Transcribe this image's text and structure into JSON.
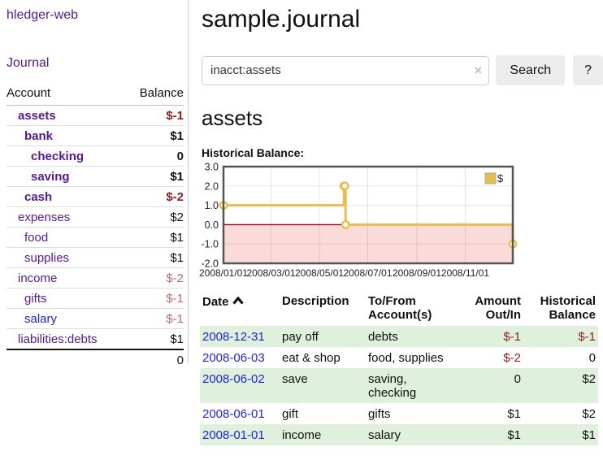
{
  "colors": {
    "purple": "#551a8b",
    "blue": "#2323cd",
    "neg": "#8c1f1f",
    "negmuted": "#c06a6a",
    "green": "#dff0dc",
    "divider": "#cccccc"
  },
  "sidebar": {
    "app_title": "hledger-web",
    "journal_link": "Journal",
    "table": {
      "account_header": "Account",
      "balance_header": "Balance",
      "accounts": [
        {
          "name": "assets",
          "depth": 1,
          "bold": true,
          "balance": "$-1",
          "balance_style": "negative"
        },
        {
          "name": "bank",
          "depth": 2,
          "bold": true,
          "balance": "$1",
          "balance_style": "normal"
        },
        {
          "name": "checking",
          "depth": 3,
          "bold": true,
          "balance": "0",
          "balance_style": "normal"
        },
        {
          "name": "saving",
          "depth": 3,
          "bold": true,
          "balance": "$1",
          "balance_style": "normal"
        },
        {
          "name": "cash",
          "depth": 2,
          "bold": true,
          "balance": "$-2",
          "balance_style": "negative"
        },
        {
          "name": "expenses",
          "depth": 1,
          "bold": false,
          "balance": "$2",
          "balance_style": "normal"
        },
        {
          "name": "food",
          "depth": 2,
          "bold": false,
          "balance": "$1",
          "balance_style": "normal"
        },
        {
          "name": "supplies",
          "depth": 2,
          "bold": false,
          "balance": "$1",
          "balance_style": "normal"
        },
        {
          "name": "income",
          "depth": 1,
          "bold": false,
          "balance": "$-2",
          "balance_style": "negative-muted"
        },
        {
          "name": "gifts",
          "depth": 2,
          "bold": false,
          "balance": "$-1",
          "balance_style": "negative-muted"
        },
        {
          "name": "salary",
          "depth": 2,
          "bold": false,
          "balance": "$-1",
          "balance_style": "negative-muted",
          "link_style": "unvisited"
        },
        {
          "name": "liabilities:debts",
          "depth": 1,
          "bold": false,
          "balance": "$1",
          "balance_style": "normal"
        }
      ],
      "total": "0"
    }
  },
  "main": {
    "title": "sample.journal",
    "search": {
      "value": "inacct:assets",
      "clear_icon": "×",
      "button_label": "Search",
      "help_label": "?"
    },
    "account_heading": "assets",
    "chart_label": "Historical Balance:"
  },
  "chart_data": {
    "type": "line",
    "title": "Historical Balance",
    "interpolation": "step-after",
    "series": [
      {
        "name": "$",
        "points": [
          [
            "2008-01-01",
            1
          ],
          [
            "2008-06-01",
            2
          ],
          [
            "2008-06-02",
            2
          ],
          [
            "2008-06-03",
            0
          ],
          [
            "2008-12-31",
            -1
          ]
        ]
      }
    ],
    "x_range": [
      "2008-01-01",
      "2008-12-31"
    ],
    "x_ticks": [
      {
        "date": "2008-01-01",
        "label": "2008/01/01"
      },
      {
        "date": "2008-03-01",
        "label": "2008/03/01"
      },
      {
        "date": "2008-05-01",
        "label": "2008/05/01"
      },
      {
        "date": "2008-07-01",
        "label": "2008/07/01"
      },
      {
        "date": "2008-09-01",
        "label": "2008/09/01"
      },
      {
        "date": "2008-11-01",
        "label": "2008/11/01"
      }
    ],
    "y_ticks": [
      {
        "value": 3,
        "label": "3.0"
      },
      {
        "value": 2,
        "label": "2.0"
      },
      {
        "value": 1,
        "label": "1.0"
      },
      {
        "value": 0,
        "label": "0.0"
      },
      {
        "value": -1,
        "label": "-1.0"
      },
      {
        "value": -2,
        "label": "-2.0"
      }
    ],
    "ylim": [
      -2,
      3
    ],
    "grid": true,
    "negative_region_shaded": true,
    "legend_position": "top-right",
    "colors": {
      "line": "#e7be4c",
      "zero_line": "#a30000",
      "negative_fill": "#fbdada",
      "border": "#555555"
    }
  },
  "register": {
    "headers": {
      "date": "Date",
      "description": "Description",
      "accounts": "To/From Account(s)",
      "amount": "Amount Out/In",
      "balance": "Historical Balance"
    },
    "sort_icon": "chevron-up",
    "rows": [
      {
        "date": "2008-12-31",
        "description": "pay off",
        "accounts": "debts",
        "amount": "$-1",
        "amount_negative": true,
        "balance": "$-1",
        "balance_negative": true
      },
      {
        "date": "2008-06-03",
        "description": "eat & shop",
        "accounts": "food, supplies",
        "amount": "$-2",
        "amount_negative": true,
        "balance": "0",
        "balance_negative": false
      },
      {
        "date": "2008-06-02",
        "description": "save",
        "accounts": "saving, checking",
        "amount": "0",
        "amount_negative": false,
        "balance": "$2",
        "balance_negative": false
      },
      {
        "date": "2008-06-01",
        "description": "gift",
        "accounts": "gifts",
        "amount": "$1",
        "amount_negative": false,
        "balance": "$2",
        "balance_negative": false
      },
      {
        "date": "2008-01-01",
        "description": "income",
        "accounts": "salary",
        "amount": "$1",
        "amount_negative": false,
        "balance": "$1",
        "balance_negative": false
      }
    ]
  }
}
